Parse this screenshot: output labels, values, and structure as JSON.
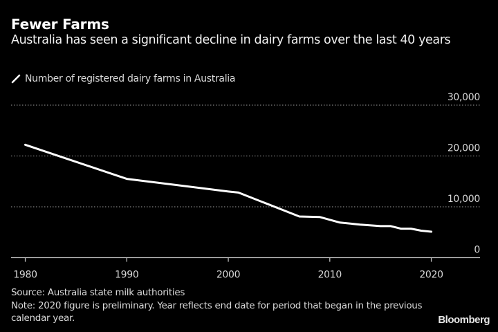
{
  "header": {
    "title": "Fewer Farms",
    "subtitle": "Australia has seen a significant decline in dairy farms over the last 40 years"
  },
  "legend": {
    "label": "Number of registered dairy farms in Australia",
    "icon": "line-swatch-icon"
  },
  "footer": {
    "source": "Source: Australia state milk authorities",
    "note": "Note: 2020 figure is preliminary. Year reflects end date for period that began in the previous calendar year."
  },
  "brand": "Bloomberg",
  "colors": {
    "background": "#000000",
    "line": "#ffffff",
    "grid": "#808080",
    "text": "#d9d9d9"
  },
  "chart_data": {
    "type": "line",
    "title": "Fewer Farms",
    "subtitle": "Australia has seen a significant decline in dairy farms over the last 40 years",
    "xlabel": "",
    "ylabel": "",
    "xlim": [
      1978.6,
      2024.8
    ],
    "ylim": [
      0,
      30000
    ],
    "x_ticks": [
      1980,
      1990,
      2000,
      2010,
      2020
    ],
    "x_tick_labels": [
      "1980",
      "1990",
      "2000",
      "2010",
      "2020"
    ],
    "y_ticks": [
      0,
      10000,
      20000,
      30000
    ],
    "y_tick_labels": [
      "0",
      "10,000",
      "20,000",
      "30,000"
    ],
    "grid": true,
    "y_axis_position": "right",
    "legend_position": "top-left",
    "series": [
      {
        "name": "Number of registered dairy farms in Australia",
        "x": [
          1980,
          1990,
          2000,
          2001,
          2007,
          2009,
          2011,
          2013,
          2015,
          2016,
          2017,
          2018,
          2019,
          2020
        ],
        "values": [
          22200,
          15500,
          13000,
          12800,
          8100,
          8000,
          6900,
          6500,
          6200,
          6200,
          5700,
          5700,
          5300,
          5100
        ]
      }
    ]
  }
}
